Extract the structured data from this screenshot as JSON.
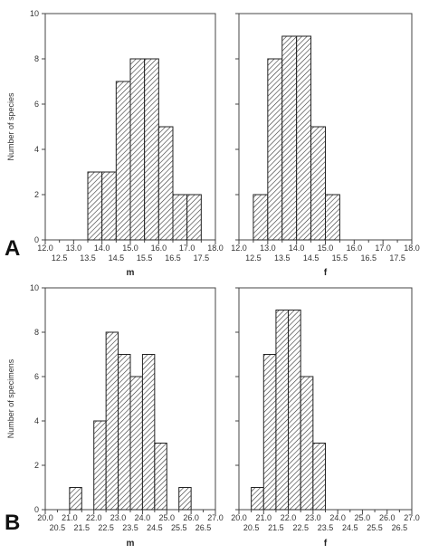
{
  "rows": [
    {
      "letter": "A",
      "ylabel": "Number of species",
      "ylim": [
        0,
        10
      ],
      "yticks": [
        "0",
        "2",
        "4",
        "6",
        "8",
        "10"
      ],
      "xlim": [
        12.0,
        18.0
      ],
      "xticks_major": [
        "12.0",
        "13.0",
        "14.0",
        "15.0",
        "16.0",
        "17.0",
        "18.0"
      ],
      "xticks_minor": [
        "12.5",
        "13.5",
        "14.5",
        "15.5",
        "16.5",
        "17.5"
      ]
    },
    {
      "letter": "B",
      "ylabel": "Number of specimens",
      "ylim": [
        0,
        10
      ],
      "yticks": [
        "0",
        "2",
        "4",
        "6",
        "8",
        "10"
      ],
      "xlim": [
        20.0,
        27.0
      ],
      "xticks_major": [
        "20.0",
        "21.0",
        "22.0",
        "23.0",
        "24.0",
        "25.0",
        "26.0",
        "27.0"
      ],
      "xticks_minor": [
        "20.5",
        "21.5",
        "22.5",
        "23.5",
        "24.5",
        "25.5",
        "26.5"
      ]
    }
  ],
  "chart_data": [
    {
      "type": "bar",
      "xlabel": "m",
      "ylabel": "Number of species",
      "xlim": [
        12.0,
        18.0
      ],
      "ylim": [
        0,
        10
      ],
      "bin_width": 0.5,
      "bin_starts": [
        13.5,
        14.0,
        14.5,
        15.0,
        15.5,
        16.0,
        16.5,
        17.0
      ],
      "values": [
        3,
        3,
        7,
        8,
        8,
        5,
        2,
        2
      ],
      "bar_pattern": "diagonal-hatch",
      "grid": false
    },
    {
      "type": "bar",
      "xlabel": "f",
      "xlim": [
        12.0,
        18.0
      ],
      "ylim": [
        0,
        10
      ],
      "bin_width": 0.5,
      "bin_starts": [
        12.5,
        13.0,
        13.5,
        14.0,
        14.5,
        15.0
      ],
      "values": [
        2,
        8,
        9,
        9,
        5,
        2
      ],
      "bar_pattern": "diagonal-hatch",
      "grid": false
    },
    {
      "type": "bar",
      "xlabel": "m",
      "ylabel": "Number of specimens",
      "xlim": [
        20.0,
        27.0
      ],
      "ylim": [
        0,
        10
      ],
      "bin_width": 0.5,
      "bin_starts": [
        21.0,
        21.5,
        22.0,
        22.5,
        23.0,
        23.5,
        24.0,
        24.5,
        25.0,
        25.5
      ],
      "values": [
        1,
        0,
        4,
        8,
        7,
        6,
        7,
        3,
        0,
        1
      ],
      "bar_pattern": "diagonal-hatch",
      "grid": false
    },
    {
      "type": "bar",
      "xlabel": "f",
      "xlim": [
        20.0,
        27.0
      ],
      "ylim": [
        0,
        10
      ],
      "bin_width": 0.5,
      "bin_starts": [
        20.5,
        21.0,
        21.5,
        22.0,
        22.5,
        23.0
      ],
      "values": [
        1,
        7,
        9,
        9,
        6,
        3
      ],
      "bar_pattern": "diagonal-hatch",
      "grid": false
    }
  ]
}
